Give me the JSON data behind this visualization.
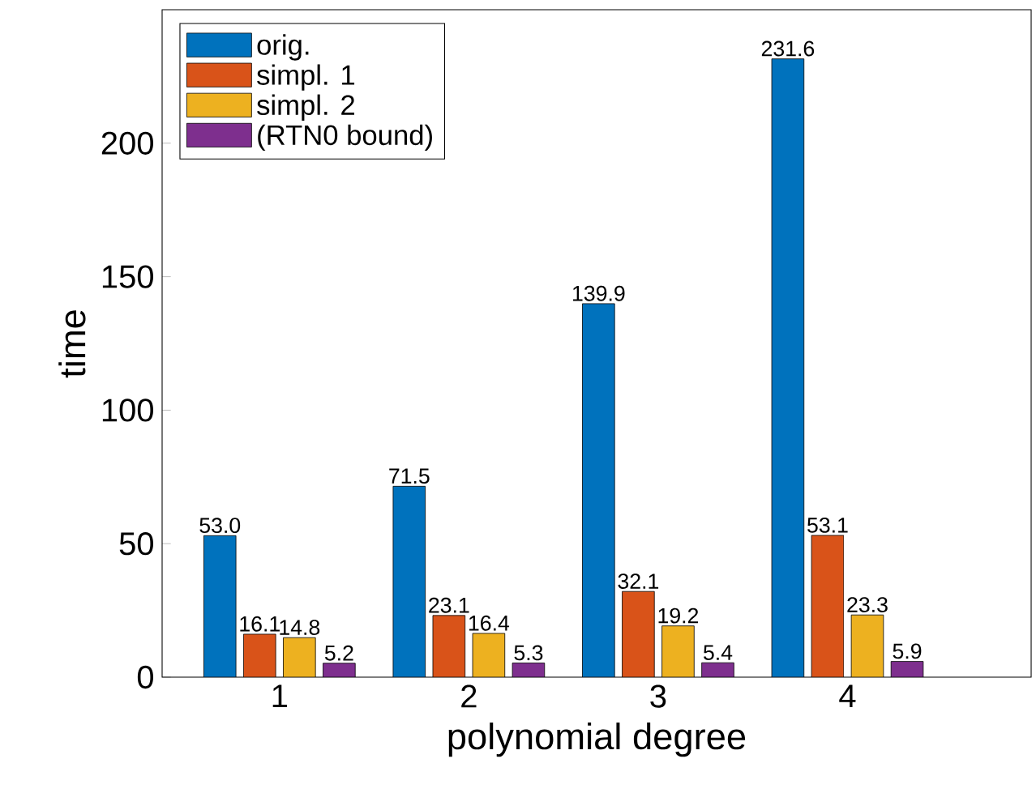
{
  "chart_data": {
    "type": "bar",
    "xlabel": "polynomial degree",
    "ylabel": "time",
    "categories": [
      "1",
      "2",
      "3",
      "4"
    ],
    "series": [
      {
        "name": "orig.",
        "color": "#0072bd",
        "values": [
          53.0,
          71.5,
          139.9,
          231.6
        ],
        "value_labels": [
          "53.0",
          "71.5",
          "139.9",
          "231.6"
        ]
      },
      {
        "name": "simpl. 1",
        "color": "#d95319",
        "values": [
          16.1,
          23.1,
          32.1,
          53.1
        ],
        "value_labels": [
          "16.1",
          "23.1",
          "32.1",
          "53.1"
        ]
      },
      {
        "name": "simpl. 2",
        "color": "#edb120",
        "values": [
          14.8,
          16.4,
          19.2,
          23.3
        ],
        "value_labels": [
          "14.8",
          "16.4",
          "19.2",
          "23.3"
        ]
      },
      {
        "name": "(RTN0 bound)",
        "color": "#7e2f8e",
        "values": [
          5.2,
          5.3,
          5.4,
          5.9
        ],
        "value_labels": [
          "5.2",
          "5.3",
          "5.4",
          "5.9"
        ]
      }
    ],
    "ylim": [
      0,
      250
    ],
    "yticks": [
      0,
      50,
      100,
      150,
      200
    ],
    "legend": "top left",
    "grid": false
  }
}
